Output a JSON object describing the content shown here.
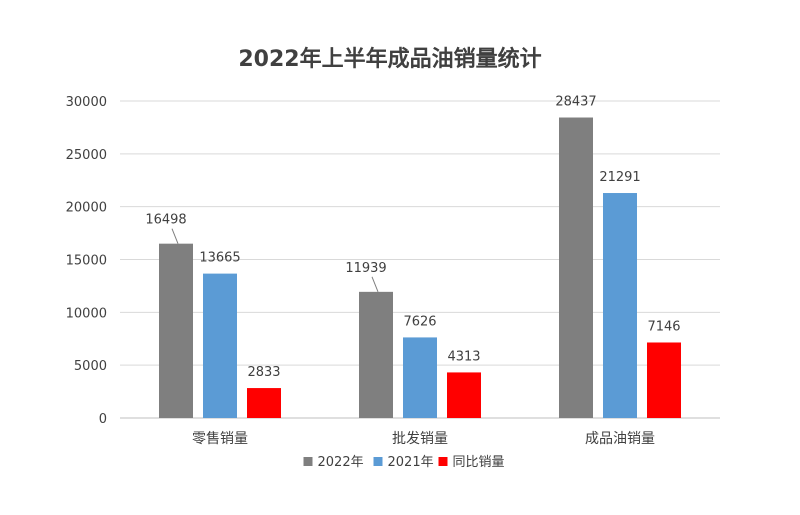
{
  "chart_data": {
    "type": "bar",
    "title": "2022年上半年成品油销量统计",
    "categories": [
      "零售销量",
      "批发销量",
      "成品油销量"
    ],
    "series": [
      {
        "name": "2022年",
        "color": "#7f7f7f",
        "values": [
          16498,
          11939,
          28437
        ]
      },
      {
        "name": "2021年",
        "color": "#5b9bd5",
        "values": [
          13665,
          7626,
          21291
        ]
      },
      {
        "name": "同比销量",
        "color": "#ff0000",
        "values": [
          2833,
          4313,
          7146
        ]
      }
    ],
    "ylim": [
      0,
      30000
    ],
    "yticks": [
      "0",
      "5000",
      "10000",
      "15000",
      "20000",
      "25000",
      "30000"
    ],
    "xlabel": "",
    "ylabel": "",
    "grid": true,
    "legend_position": "bottom"
  }
}
